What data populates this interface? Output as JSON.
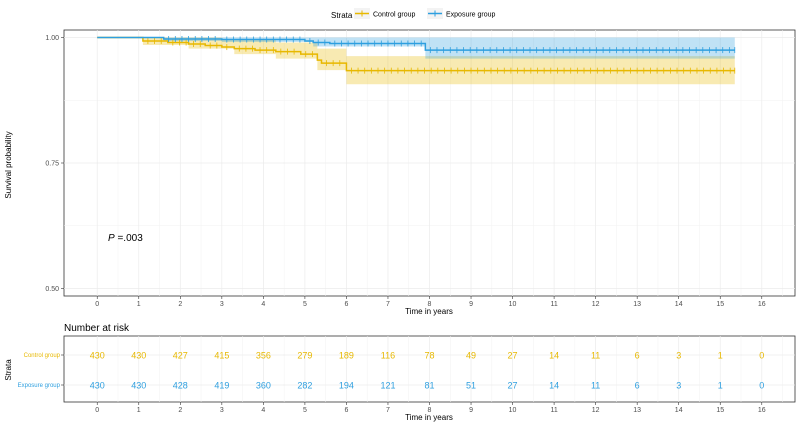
{
  "legend": {
    "title": "Strata",
    "items": [
      "Control group",
      "Exposure group"
    ]
  },
  "colors": {
    "control": "#E7B800",
    "exposure": "#2E9FDF"
  },
  "p_value": {
    "label": "P",
    "value": " =.003"
  },
  "risk_table": {
    "title": "Number at risk",
    "ylabel": "Strata",
    "xlabel": "Time in years",
    "rows": [
      {
        "name": "Control group",
        "values": [
          "430",
          "430",
          "427",
          "415",
          "356",
          "279",
          "189",
          "116",
          "78",
          "49",
          "27",
          "14",
          "11",
          "6",
          "3",
          "1",
          "0"
        ]
      },
      {
        "name": "Exposure group",
        "values": [
          "430",
          "430",
          "428",
          "419",
          "360",
          "282",
          "194",
          "121",
          "81",
          "51",
          "27",
          "14",
          "11",
          "6",
          "3",
          "1",
          "0"
        ]
      }
    ]
  },
  "chart_data": {
    "type": "line",
    "xlabel": "Time in years",
    "ylabel": "Survival probability",
    "xlim": [
      -0.8,
      16.8
    ],
    "ylim": [
      0.485,
      1.015
    ],
    "xticks": [
      "0",
      "1",
      "2",
      "3",
      "4",
      "5",
      "6",
      "7",
      "8",
      "9",
      "10",
      "11",
      "12",
      "13",
      "14",
      "15",
      "16"
    ],
    "yticks": [
      "0.50",
      "0.75",
      "1.00"
    ],
    "grid": true,
    "legend_position": "top",
    "series": [
      {
        "name": "Control group",
        "steps": [
          [
            0,
            1.0
          ],
          [
            1.1,
            0.993
          ],
          [
            1.7,
            0.99
          ],
          [
            2.2,
            0.987
          ],
          [
            2.6,
            0.984
          ],
          [
            3.0,
            0.981
          ],
          [
            3.3,
            0.978
          ],
          [
            3.8,
            0.975
          ],
          [
            4.3,
            0.972
          ],
          [
            4.9,
            0.967
          ],
          [
            5.3,
            0.955
          ],
          [
            5.4,
            0.949
          ],
          [
            6.0,
            0.934
          ],
          [
            15.35,
            0.934
          ]
        ],
        "ci_upper": [
          [
            0,
            1.0
          ],
          [
            1.1,
            1.0
          ],
          [
            3.0,
            0.995
          ],
          [
            4.3,
            0.99
          ],
          [
            5.3,
            0.978
          ],
          [
            6.0,
            0.963
          ],
          [
            15.35,
            0.963
          ]
        ],
        "ci_lower": [
          [
            0,
            1.0
          ],
          [
            1.1,
            0.985
          ],
          [
            2.2,
            0.978
          ],
          [
            3.3,
            0.967
          ],
          [
            4.3,
            0.958
          ],
          [
            5.3,
            0.935
          ],
          [
            6.0,
            0.907
          ],
          [
            15.35,
            0.907
          ]
        ]
      },
      {
        "name": "Exposure group",
        "steps": [
          [
            0,
            1.0
          ],
          [
            1.6,
            0.997
          ],
          [
            3.0,
            0.996
          ],
          [
            5.0,
            0.993
          ],
          [
            5.2,
            0.99
          ],
          [
            5.6,
            0.988
          ],
          [
            7.9,
            0.975
          ],
          [
            15.35,
            0.975
          ]
        ],
        "ci_upper": [
          [
            0,
            1.0
          ],
          [
            7.9,
            1.0
          ],
          [
            15.35,
            1.0
          ]
        ],
        "ci_lower": [
          [
            0,
            1.0
          ],
          [
            1.6,
            0.993
          ],
          [
            3.0,
            0.991
          ],
          [
            5.2,
            0.982
          ],
          [
            7.9,
            0.958
          ],
          [
            15.35,
            0.958
          ]
        ]
      }
    ]
  }
}
